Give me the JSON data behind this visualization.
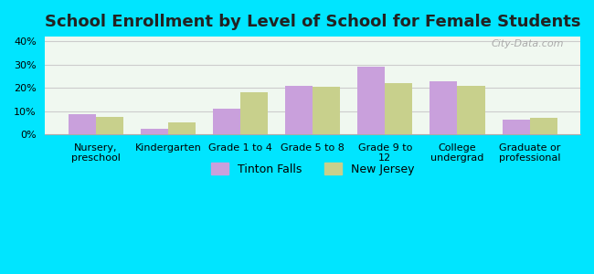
{
  "title": "School Enrollment by Level of School for Female Students",
  "categories": [
    "Nursery,\npreschool",
    "Kindergarten",
    "Grade 1 to 4",
    "Grade 5 to 8",
    "Grade 9 to\n12",
    "College\nundergrad",
    "Graduate or\nprofessional"
  ],
  "tinton_falls": [
    8.5,
    2.5,
    11.0,
    21.0,
    29.0,
    23.0,
    6.5
  ],
  "new_jersey": [
    7.5,
    5.0,
    18.0,
    20.5,
    22.0,
    21.0,
    7.0
  ],
  "tinton_color": "#c9a0dc",
  "nj_color": "#c8d08c",
  "background_outer": "#00e5ff",
  "background_inner_top": "#f0f8f0",
  "background_inner_bottom": "#e8f5e0",
  "grid_color": "#cccccc",
  "title_fontsize": 13,
  "legend_label_1": "Tinton Falls",
  "legend_label_2": "New Jersey",
  "ylim": [
    0,
    42
  ],
  "yticks": [
    0,
    10,
    20,
    30,
    40
  ],
  "bar_width": 0.38
}
